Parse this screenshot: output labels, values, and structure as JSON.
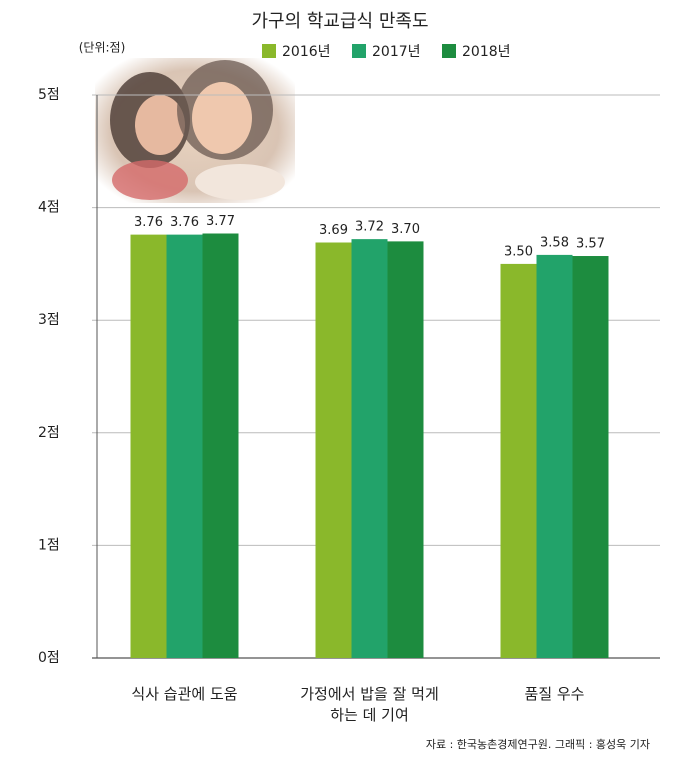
{
  "chart_data": {
    "type": "bar",
    "title": "가구의 학교급식 만족도",
    "unit": "(단위:점)",
    "categories": [
      "식사 습관에 도움",
      "가정에서 밥을 잘 먹게\n하는 데 기여",
      "품질 우수"
    ],
    "series": [
      {
        "name": "2016년",
        "color": "#8ab82b",
        "values": [
          3.76,
          3.69,
          3.5
        ],
        "value_labels": [
          "3.76",
          "3.69",
          "3.50"
        ]
      },
      {
        "name": "2017년",
        "color": "#22a36a",
        "values": [
          3.76,
          3.72,
          3.58
        ],
        "value_labels": [
          "3.76",
          "3.72",
          "3.58"
        ]
      },
      {
        "name": "2018년",
        "color": "#1d8c3f",
        "values": [
          3.77,
          3.7,
          3.57
        ],
        "value_labels": [
          "3.77",
          "3.70",
          "3.57"
        ]
      }
    ],
    "ylim": [
      0,
      5
    ],
    "yticks": [
      {
        "value": 0,
        "label": "0점"
      },
      {
        "value": 1,
        "label": "1점"
      },
      {
        "value": 2,
        "label": "2점"
      },
      {
        "value": 3,
        "label": "3점"
      },
      {
        "value": 4,
        "label": "4점"
      },
      {
        "value": 5,
        "label": "5점"
      }
    ],
    "grid": true,
    "source": "자료 : 한국농촌경제연구원. 그래픽 : 홍성욱 기자"
  }
}
